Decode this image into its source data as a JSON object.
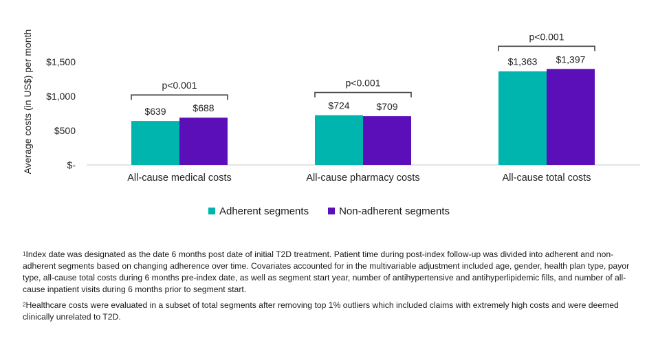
{
  "chart_data": {
    "type": "bar",
    "categories": [
      "All-cause medical costs",
      "All-cause pharmacy costs",
      "All-cause total costs"
    ],
    "series": [
      {
        "name": "Adherent segments",
        "color": "#00b5ad",
        "values": [
          639,
          724,
          1363
        ],
        "labels": [
          "$639",
          "$724",
          "$1,363"
        ]
      },
      {
        "name": "Non-adherent segments",
        "color": "#5b0fb8",
        "values": [
          688,
          709,
          1397
        ],
        "labels": [
          "$688",
          "$709",
          "$1,397"
        ]
      }
    ],
    "ylabel": "Average costs (in US$)  per month",
    "ylim": [
      0,
      1500
    ],
    "yticks": [
      0,
      500,
      1000,
      1500
    ],
    "ytick_labels": [
      "$-",
      "$500",
      "$1,000",
      "$1,500"
    ],
    "annotations": [
      "p<0.001",
      "p<0.001",
      "p<0.001"
    ]
  },
  "legend": {
    "adherent": "Adherent segments",
    "non_adherent": "Non-adherent segments"
  },
  "footnotes": {
    "note1_marker": "1",
    "note1_text": "Index date was designated as the date 6 months post date of initial T2D treatment. Patient time during post-index follow-up was divided into adherent and non-adherent segments based on changing adherence over time. Covariates accounted for in the multivariable adjustment included age, gender, health plan type, payor type, all-cause total costs during 6 months pre-index date, as well as segment start year, number of antihypertensive and antihyperlipidemic fills, and number of all-cause inpatient visits during 6 months prior to segment start.",
    "note2_marker": "2",
    "note2_text": "Healthcare costs were evaluated in a subset of total segments after removing top 1% outliers which included claims with extremely high costs and were deemed clinically unrelated to T2D."
  }
}
